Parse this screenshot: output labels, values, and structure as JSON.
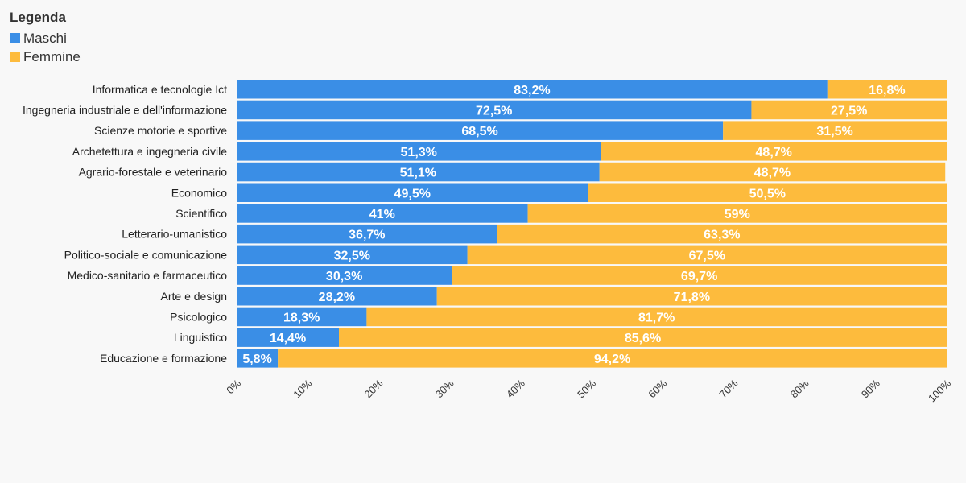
{
  "legend": {
    "title": "Legenda",
    "items": [
      {
        "label": "Maschi",
        "color": "#3a8ee6"
      },
      {
        "label": "Femmine",
        "color": "#fdbb3d"
      }
    ]
  },
  "chart_data": {
    "type": "bar",
    "orientation": "horizontal",
    "stacked": true,
    "categories": [
      "Informatica e tecnologie Ict",
      "Ingegneria industriale e dell'informazione",
      "Scienze motorie e sportive",
      "Archetettura e ingegneria civile",
      "Agrario-forestale e veterinario",
      "Economico",
      "Scientifico",
      "Letterario-umanistico",
      "Politico-sociale e comunicazione",
      "Medico-sanitario e farmaceutico",
      "Arte e design",
      "Psicologico",
      "Linguistico",
      "Educazione e formazione"
    ],
    "series": [
      {
        "name": "Maschi",
        "color": "#3a8ee6",
        "values": [
          83.2,
          72.5,
          68.5,
          51.3,
          51.1,
          49.5,
          41,
          36.7,
          32.5,
          30.3,
          28.2,
          18.3,
          14.4,
          5.8
        ],
        "labels": [
          "83,2%",
          "72,5%",
          "68,5%",
          "51,3%",
          "51,1%",
          "49,5%",
          "41%",
          "36,7%",
          "32,5%",
          "30,3%",
          "28,2%",
          "18,3%",
          "14,4%",
          "5,8%"
        ]
      },
      {
        "name": "Femmine",
        "color": "#fdbb3d",
        "values": [
          16.8,
          27.5,
          31.5,
          48.7,
          48.7,
          50.5,
          59,
          63.3,
          67.5,
          69.7,
          71.8,
          81.7,
          85.6,
          94.2
        ],
        "labels": [
          "16,8%",
          "27,5%",
          "31,5%",
          "48,7%",
          "48,7%",
          "50,5%",
          "59%",
          "63,3%",
          "67,5%",
          "69,7%",
          "71,8%",
          "81,7%",
          "85,6%",
          "94,2%"
        ]
      }
    ],
    "x_ticks": [
      "0%",
      "10%",
      "20%",
      "30%",
      "40%",
      "50%",
      "60%",
      "70%",
      "80%",
      "90%",
      "100%"
    ],
    "xlim": [
      0,
      100
    ],
    "grid": false,
    "legend_position": "top-left"
  }
}
